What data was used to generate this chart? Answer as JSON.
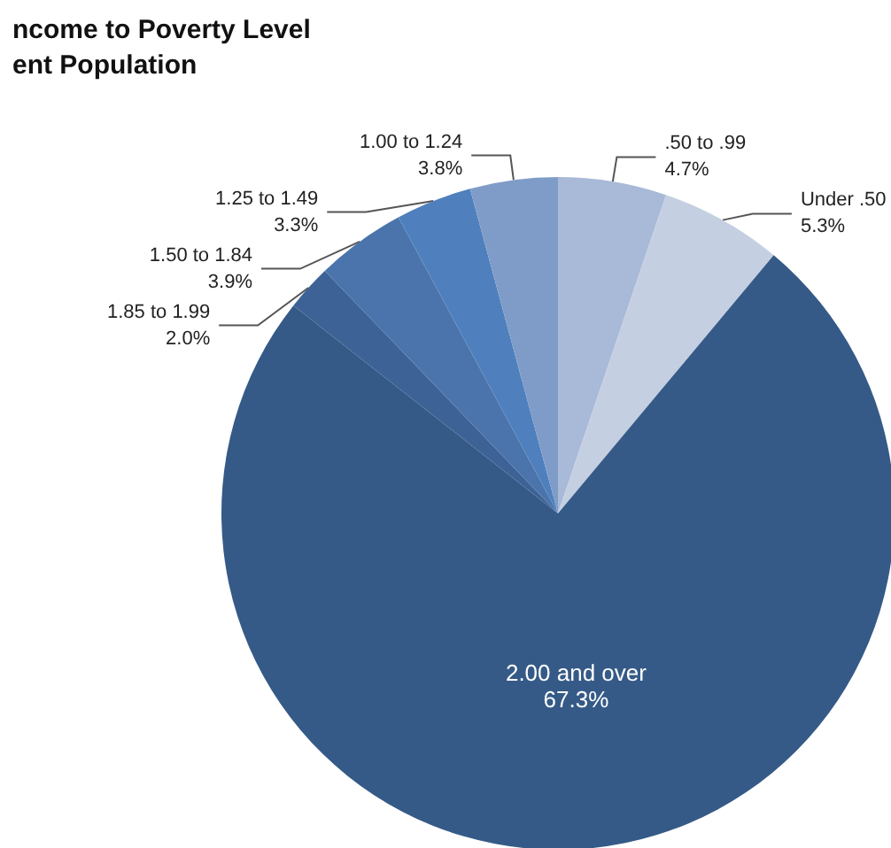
{
  "chart_data": {
    "type": "pie",
    "title": "ncome to Poverty Level\nent Population",
    "categories": [
      ".50 to .99",
      "Under .50",
      "2.00 and over",
      "1.85 to 1.99",
      "1.50 to 1.84",
      "1.25 to 1.49",
      "1.00 to 1.24"
    ],
    "values": [
      4.7,
      5.3,
      67.3,
      2.0,
      3.9,
      3.3,
      3.8
    ],
    "value_labels": [
      "4.7%",
      "5.3%",
      "67.3%",
      "2.0%",
      "3.9%",
      "3.3%",
      "3.8%"
    ],
    "colors": [
      "#a9b9d8",
      "#c5cfe2",
      "#355a87",
      "#3d6396",
      "#4a74ab",
      "#4f80bd",
      "#7f9cc8"
    ],
    "legend": false
  }
}
